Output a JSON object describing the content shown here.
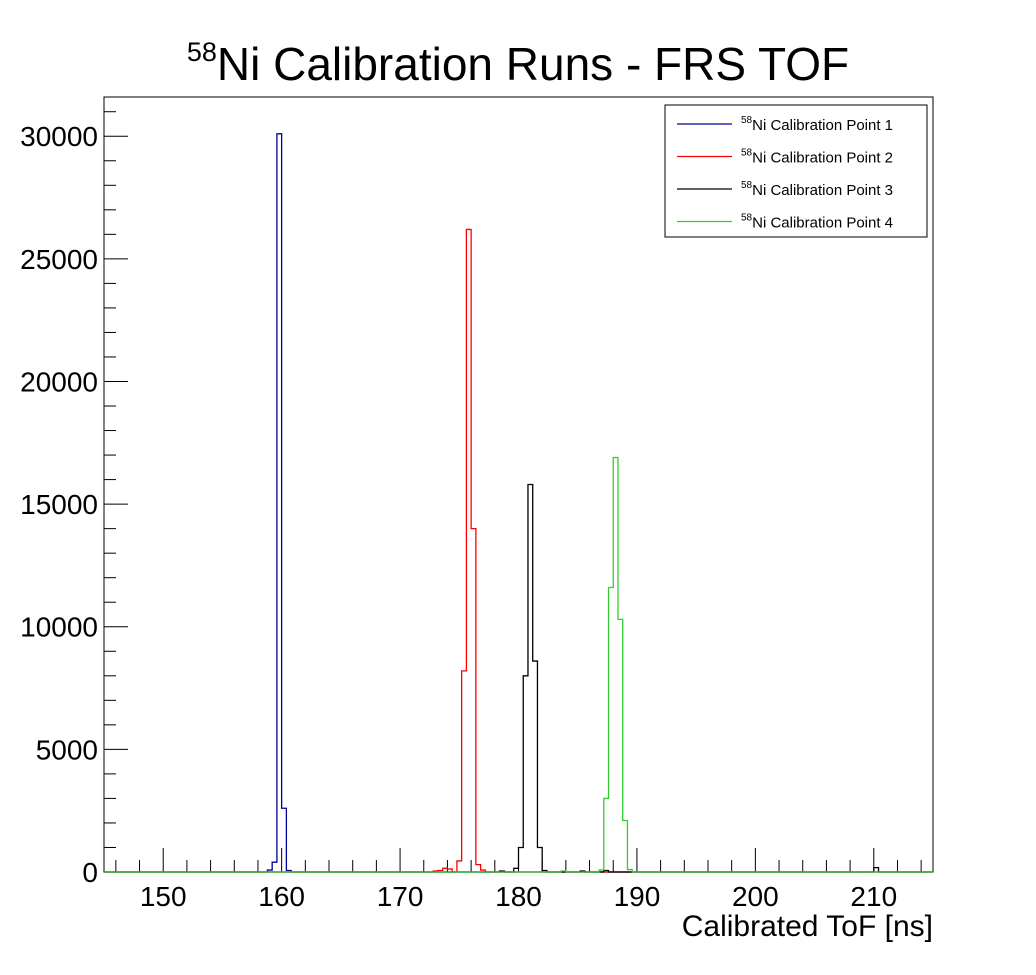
{
  "chart_data": {
    "type": "histogram",
    "title": "Ni Calibration Runs - FRS TOF",
    "title_superscript": "58",
    "xlabel": "Calibrated ToF [ns]",
    "ylabel": "",
    "xlim": [
      145,
      215
    ],
    "ylim": [
      0,
      31600
    ],
    "x_ticks": [
      150,
      160,
      170,
      180,
      190,
      200,
      210
    ],
    "y_ticks": [
      0,
      5000,
      10000,
      15000,
      20000,
      25000,
      30000
    ],
    "grid": false,
    "legend_position": "top-right",
    "bin_width": 0.4,
    "series": [
      {
        "name": "Ni Calibration Point 1",
        "name_superscript": "58",
        "color": "#000099",
        "points": [
          [
            158.8,
            80
          ],
          [
            159.2,
            400
          ],
          [
            159.6,
            30100
          ],
          [
            160.0,
            2600
          ],
          [
            160.4,
            60
          ]
        ]
      },
      {
        "name": "Ni Calibration Point 2",
        "name_superscript": "58",
        "color": "#ff0000",
        "points": [
          [
            172.8,
            40
          ],
          [
            173.2,
            60
          ],
          [
            173.6,
            150
          ],
          [
            174.0,
            120
          ],
          [
            174.8,
            450
          ],
          [
            175.2,
            8200
          ],
          [
            175.6,
            26200
          ],
          [
            176.0,
            14000
          ],
          [
            176.4,
            300
          ],
          [
            176.8,
            80
          ]
        ]
      },
      {
        "name": "Ni Calibration Point 3",
        "name_superscript": "58",
        "color": "#000000",
        "points": [
          [
            178.4,
            40
          ],
          [
            179.6,
            150
          ],
          [
            180.0,
            1000
          ],
          [
            180.4,
            8000
          ],
          [
            180.8,
            15800
          ],
          [
            181.2,
            8600
          ],
          [
            181.6,
            1000
          ],
          [
            182.0,
            60
          ],
          [
            185.2,
            40
          ],
          [
            187.2,
            60
          ],
          [
            209.8,
            80
          ],
          [
            210.2,
            180
          ]
        ]
      },
      {
        "name": "Ni Calibration Point 4",
        "name_superscript": "58",
        "color": "#33cc33",
        "points": [
          [
            183.6,
            40
          ],
          [
            186.8,
            80
          ],
          [
            187.2,
            3000
          ],
          [
            187.6,
            11600
          ],
          [
            188.0,
            16900
          ],
          [
            188.4,
            10300
          ],
          [
            188.8,
            2100
          ],
          [
            189.2,
            100
          ]
        ]
      }
    ]
  }
}
